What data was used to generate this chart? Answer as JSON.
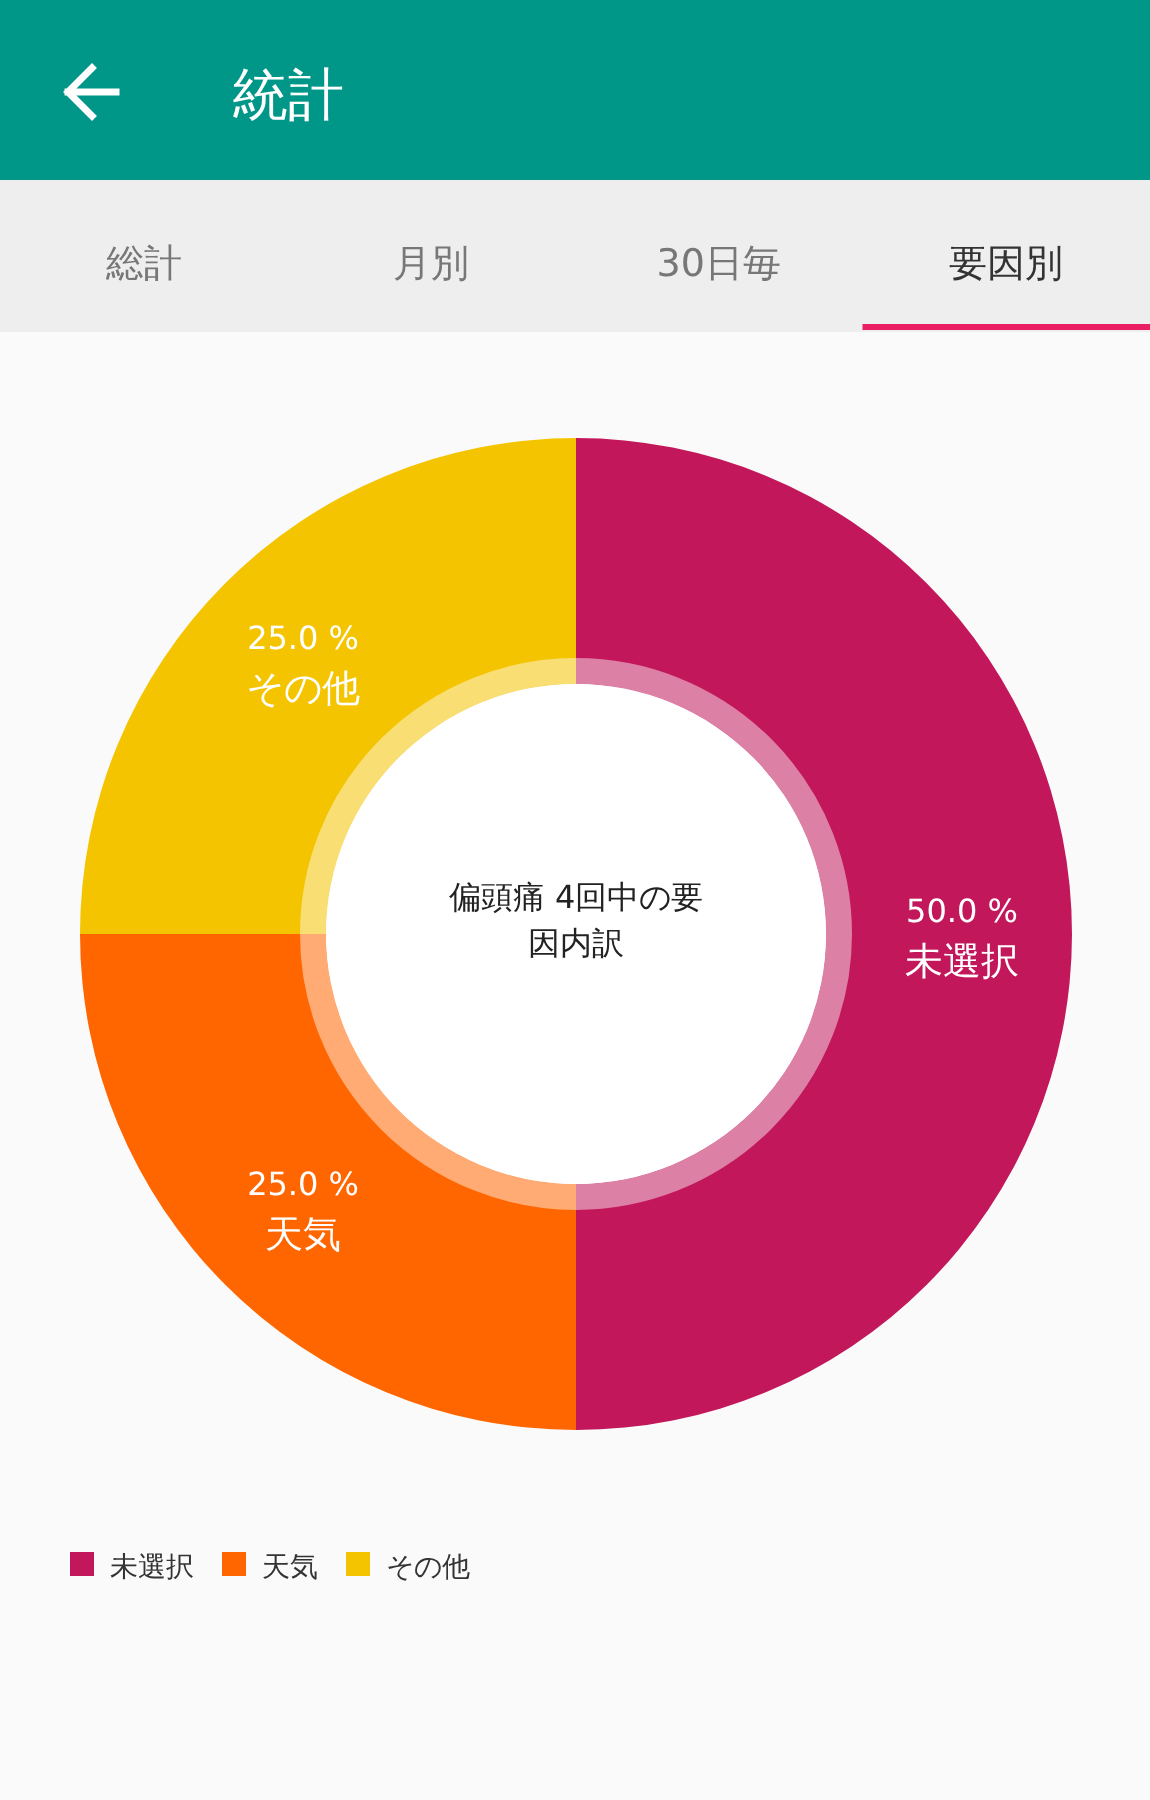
{
  "chart_data": {
    "type": "donut",
    "title": "統計",
    "subtitle": "偏頭痛 4回中の要因内訳",
    "annotations": [
      "総計",
      "月別",
      "30日毎",
      "要因別"
    ],
    "categories": [
      "未選択",
      "天気",
      "その他"
    ],
    "values": [
      50,
      25,
      25
    ],
    "colors": [
      "#c2185b",
      "#ff6600",
      "#f5c400"
    ],
    "value_labels": [
      "50.0 %",
      "25.0 %",
      "25.0 %"
    ],
    "legend": "bottom left"
  }
}
